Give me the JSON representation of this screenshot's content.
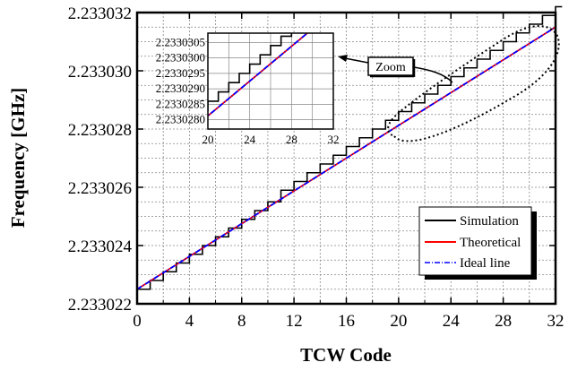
{
  "chart_data": {
    "type": "line",
    "xlabel": "TCW Code",
    "ylabel": "Frequency [GHz]",
    "xlim": [
      0,
      32
    ],
    "ylim": [
      2.233022,
      2.233032
    ],
    "x_ticks": [
      "0",
      "4",
      "8",
      "12",
      "16",
      "20",
      "24",
      "28",
      "32"
    ],
    "y_ticks": [
      "2.233022",
      "2.233024",
      "2.233026",
      "2.233028",
      "2.233030",
      "2.233032"
    ],
    "grid": true,
    "legend_position": "bottom-right",
    "series": [
      {
        "name": "Simulation",
        "style": "step",
        "color": "#000000",
        "x": [
          0,
          1,
          2,
          3,
          4,
          5,
          6,
          7,
          8,
          9,
          10,
          11,
          12,
          13,
          14,
          15,
          16,
          17,
          18,
          19,
          20,
          21,
          22,
          23,
          24,
          25,
          26,
          27,
          28,
          29,
          30,
          31,
          32
        ],
        "y": [
          2.2330225,
          2.2330228,
          2.2330231,
          2.2330234,
          2.2330237,
          2.233024,
          2.2330243,
          2.2330246,
          2.2330249,
          2.2330252,
          2.2330255,
          2.2330259,
          2.2330262,
          2.2330265,
          2.2330268,
          2.2330271,
          2.2330274,
          2.2330277,
          2.233028,
          2.2330283,
          2.2330286,
          2.2330289,
          2.2330292,
          2.2330295,
          2.2330298,
          2.2330301,
          2.2330304,
          2.2330307,
          2.233031,
          2.2330313,
          2.2330316,
          2.2330319,
          2.2330322
        ]
      },
      {
        "name": "Theoretical",
        "style": "solid",
        "color": "#ff0000",
        "x": [
          0,
          32
        ],
        "y": [
          2.2330225,
          2.2330315
        ]
      },
      {
        "name": "Ideal line",
        "style": "dashdot",
        "color": "#0000ff",
        "x": [
          0,
          32
        ],
        "y": [
          2.2330225,
          2.2330315
        ]
      }
    ],
    "annotations": [
      {
        "text": "Zoom"
      }
    ],
    "inset": {
      "xlim": [
        20,
        32
      ],
      "ylim": [
        2.2330277,
        2.2330308
      ],
      "x_ticks": [
        "20",
        "24",
        "28",
        "32"
      ],
      "y_ticks": [
        "2.2330280",
        "2.2330285",
        "2.2330290",
        "2.2330295",
        "2.2330300",
        "2.2330305"
      ]
    }
  }
}
